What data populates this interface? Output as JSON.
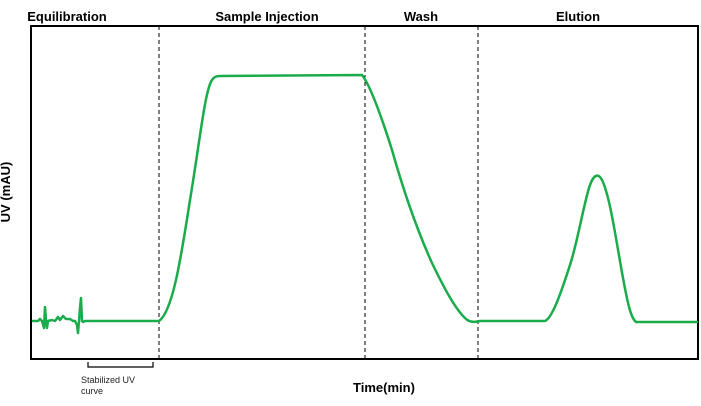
{
  "phases": [
    {
      "label": "Equilibration"
    },
    {
      "label": "Sample Injection"
    },
    {
      "label": "Wash"
    },
    {
      "label": "Elution"
    }
  ],
  "axes": {
    "x_label": "Time(min)",
    "y_label": "UV (mAU)"
  },
  "annotation": {
    "line1": "Stabilized UV",
    "line2": "curve"
  },
  "colors": {
    "trace": "#1aab4a",
    "frame": "#000000",
    "divider": "#000000"
  }
}
